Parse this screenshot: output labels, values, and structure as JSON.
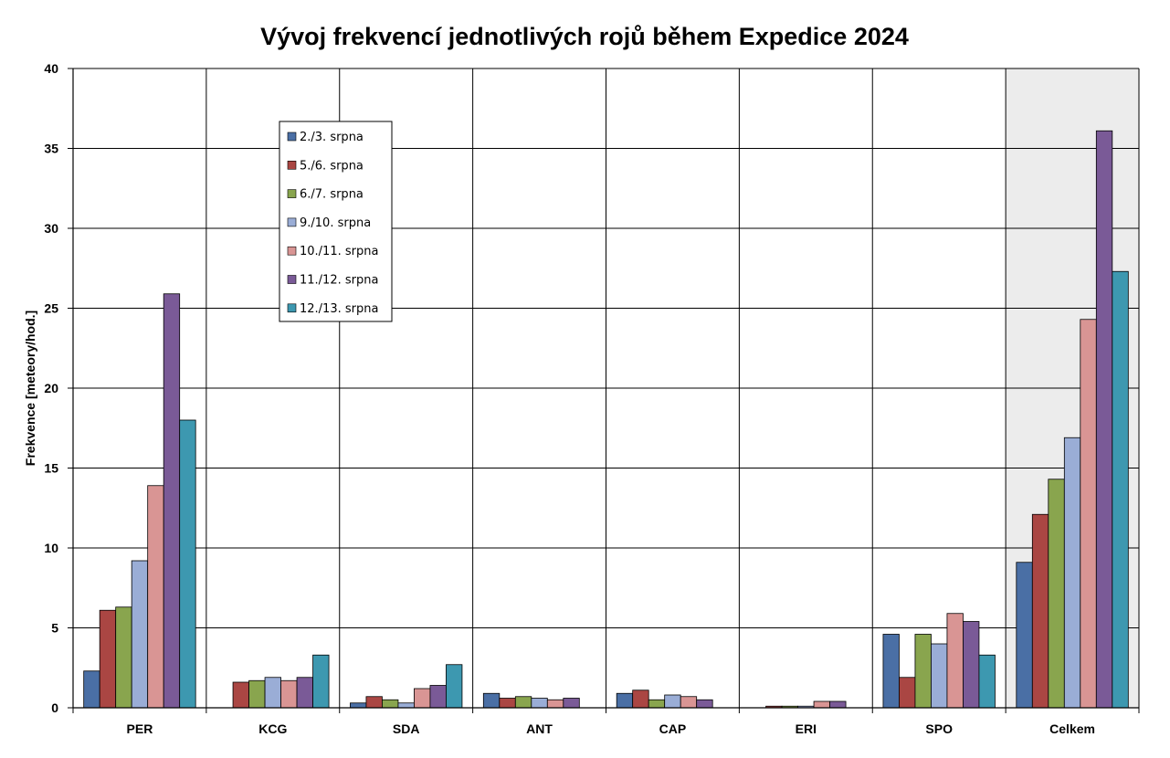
{
  "chart_data": {
    "type": "bar",
    "title": "Vývoj frekvencí jednotlivých rojů během Expedice 2024",
    "xlabel": "",
    "ylabel": "Frekvence [meteory/hod.]",
    "ylim": [
      0,
      40
    ],
    "yticks": [
      "0",
      "5",
      "10",
      "15",
      "20",
      "25",
      "30",
      "35",
      "40"
    ],
    "categories": [
      "PER",
      "KCG",
      "SDA",
      "ANT",
      "CAP",
      "ERI",
      "SPO",
      "Celkem"
    ],
    "highlighted_category": "Celkem",
    "highlight_color": "#ececec",
    "grid": true,
    "legend_position": "top-left",
    "series": [
      {
        "name": "2./3. srpna",
        "color": "#4a6fa5",
        "values": [
          2.3,
          0,
          0.3,
          0.9,
          0.9,
          0,
          4.6,
          9.1
        ]
      },
      {
        "name": "5./6. srpna",
        "color": "#aa4643",
        "values": [
          6.1,
          1.6,
          0.7,
          0.6,
          1.1,
          0.1,
          1.9,
          12.1
        ]
      },
      {
        "name": "6./7. srpna",
        "color": "#89a54e",
        "values": [
          6.3,
          1.7,
          0.5,
          0.7,
          0.5,
          0.1,
          4.6,
          14.3
        ]
      },
      {
        "name": "9./10. srpna",
        "color": "#9aadd6",
        "values": [
          9.2,
          1.9,
          0.3,
          0.6,
          0.8,
          0.1,
          4.0,
          16.9
        ]
      },
      {
        "name": "10./11. srpna",
        "color": "#d99594",
        "values": [
          13.9,
          1.7,
          1.2,
          0.5,
          0.7,
          0.4,
          5.9,
          24.3
        ]
      },
      {
        "name": "11./12. srpna",
        "color": "#7a5a97",
        "values": [
          25.9,
          1.9,
          1.4,
          0.6,
          0.5,
          0.4,
          5.4,
          36.1
        ]
      },
      {
        "name": "12./13. srpna",
        "color": "#3d98b0",
        "values": [
          18.0,
          3.3,
          2.7,
          0,
          0,
          0,
          3.3,
          27.3
        ]
      }
    ]
  }
}
